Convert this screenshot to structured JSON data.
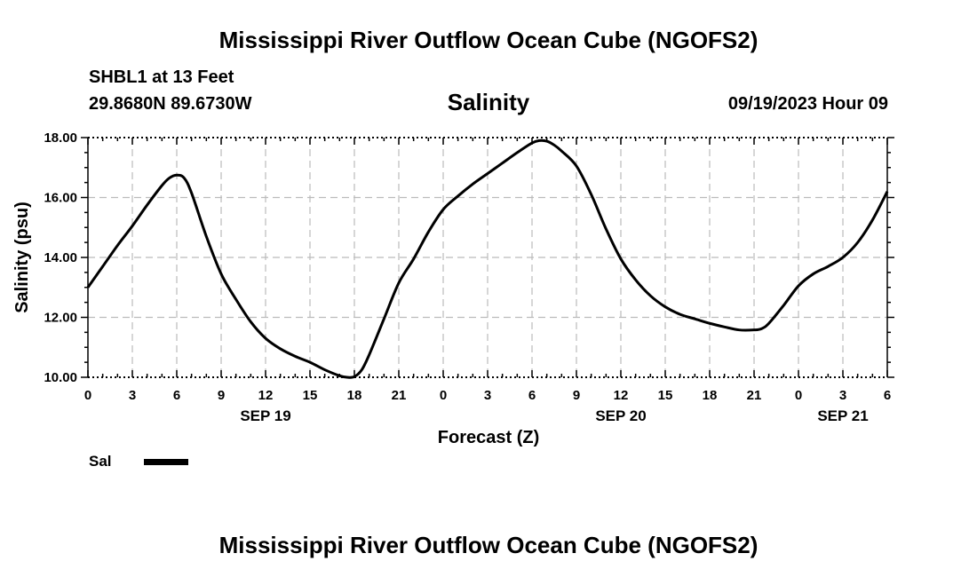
{
  "header": {
    "title": "Mississippi River Outflow Ocean Cube (NGOFS2)",
    "station": "SHBL1 at 13 Feet",
    "coords": "29.8680N  89.6730W",
    "datetime": "09/19/2023 Hour 09"
  },
  "footer": {
    "title": "Mississippi River Outflow Ocean Cube (NGOFS2)"
  },
  "legend": {
    "label": "Sal"
  },
  "chart_data": {
    "type": "line",
    "title": "Salinity",
    "xlabel": "Forecast (Z)",
    "ylabel": "Salinity (psu)",
    "xlim": [
      0,
      54
    ],
    "ylim": [
      10,
      18
    ],
    "grid": true,
    "legend_position": "bottom-left",
    "x_ticks": [
      0,
      3,
      6,
      9,
      12,
      15,
      18,
      21,
      24,
      27,
      30,
      33,
      36,
      39,
      42,
      45,
      48,
      51,
      54
    ],
    "x_tick_labels": [
      "0",
      "3",
      "6",
      "9",
      "12",
      "15",
      "18",
      "21",
      "0",
      "3",
      "6",
      "9",
      "12",
      "15",
      "18",
      "21",
      "0",
      "3",
      "6"
    ],
    "y_ticks": [
      10,
      12,
      14,
      16,
      18
    ],
    "y_tick_labels": [
      "10.00",
      "12.00",
      "14.00",
      "16.00",
      "18.00"
    ],
    "date_labels": [
      {
        "x": 12,
        "label": "SEP 19"
      },
      {
        "x": 36,
        "label": "SEP 20"
      },
      {
        "x": 51,
        "label": "SEP 21"
      }
    ],
    "series": [
      {
        "name": "Sal",
        "color": "#000000",
        "x": [
          0,
          1,
          2,
          3,
          4,
          5,
          5.5,
          6,
          6.5,
          7,
          8,
          9,
          10,
          11,
          12,
          13,
          14,
          15,
          16,
          17,
          17.5,
          18,
          18.5,
          19,
          20,
          21,
          22,
          23,
          24,
          25,
          26,
          27,
          28,
          29,
          30,
          30.5,
          31,
          31.5,
          32,
          33,
          34,
          35,
          36,
          37,
          38,
          39,
          40,
          41,
          42,
          43,
          44,
          45,
          45.5,
          46,
          47,
          48,
          49,
          50,
          51,
          52,
          53,
          54
        ],
        "y": [
          13.0,
          13.7,
          14.4,
          15.05,
          15.75,
          16.4,
          16.65,
          16.75,
          16.65,
          16.15,
          14.7,
          13.45,
          12.6,
          11.85,
          11.3,
          10.95,
          10.7,
          10.5,
          10.25,
          10.05,
          10.0,
          10.02,
          10.25,
          10.75,
          11.95,
          13.15,
          13.95,
          14.85,
          15.6,
          16.05,
          16.45,
          16.8,
          17.15,
          17.5,
          17.82,
          17.9,
          17.88,
          17.75,
          17.55,
          17.05,
          16.1,
          14.95,
          13.95,
          13.25,
          12.72,
          12.35,
          12.1,
          11.95,
          11.8,
          11.68,
          11.58,
          11.58,
          11.62,
          11.8,
          12.4,
          13.05,
          13.45,
          13.7,
          14.0,
          14.5,
          15.25,
          16.2
        ]
      }
    ]
  }
}
